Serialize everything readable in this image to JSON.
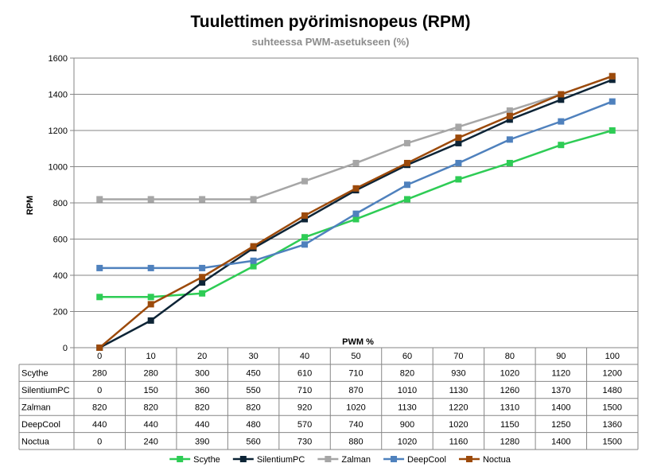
{
  "chart_data": {
    "type": "line",
    "title": "Tuulettimen pyörimisnopeus (RPM)",
    "subtitle": "suhteessa PWM-asetukseen (%)",
    "xlabel": "PWM %",
    "ylabel": "RPM",
    "x": [
      "0",
      "10",
      "20",
      "30",
      "40",
      "50",
      "60",
      "70",
      "80",
      "90",
      "100"
    ],
    "ylim": [
      0,
      1600
    ],
    "yticks": [
      "0",
      "200",
      "400",
      "600",
      "800",
      "1000",
      "1200",
      "1400",
      "1600"
    ],
    "grid": true,
    "legend": "bottom",
    "series": [
      {
        "name": "Scythe",
        "color": "#2ecc55",
        "values": [
          280,
          280,
          300,
          450,
          610,
          710,
          820,
          930,
          1020,
          1120,
          1200
        ]
      },
      {
        "name": "SilentiumPC",
        "color": "#0d2436",
        "values": [
          0,
          150,
          360,
          550,
          710,
          870,
          1010,
          1130,
          1260,
          1370,
          1480
        ]
      },
      {
        "name": "Zalman",
        "color": "#a6a6a6",
        "values": [
          820,
          820,
          820,
          820,
          920,
          1020,
          1130,
          1220,
          1310,
          1400,
          1500
        ]
      },
      {
        "name": "DeepCool",
        "color": "#4f81bd",
        "values": [
          440,
          440,
          440,
          480,
          570,
          740,
          900,
          1020,
          1150,
          1250,
          1360
        ]
      },
      {
        "name": "Noctua",
        "color": "#9c4a0b",
        "values": [
          0,
          240,
          390,
          560,
          730,
          880,
          1020,
          1160,
          1280,
          1400,
          1500
        ]
      }
    ],
    "table": [
      {
        "name": "Scythe",
        "cells": [
          "280",
          "280",
          "300",
          "450",
          "610",
          "710",
          "820",
          "930",
          "1020",
          "1120",
          "1200"
        ]
      },
      {
        "name": "SilentiumPC",
        "cells": [
          "0",
          "150",
          "360",
          "550",
          "710",
          "870",
          "1010",
          "1130",
          "1260",
          "1370",
          "1480"
        ]
      },
      {
        "name": "Zalman",
        "cells": [
          "820",
          "820",
          "820",
          "820",
          "920",
          "1020",
          "1130",
          "1220",
          "1310",
          "1400",
          "1500"
        ]
      },
      {
        "name": "DeepCool",
        "cells": [
          "440",
          "440",
          "440",
          "480",
          "570",
          "740",
          "900",
          "1020",
          "1150",
          "1250",
          "1360"
        ]
      },
      {
        "name": "Noctua",
        "cells": [
          "0",
          "240",
          "390",
          "560",
          "730",
          "880",
          "1020",
          "1160",
          "1280",
          "1400",
          "1500"
        ]
      }
    ]
  }
}
